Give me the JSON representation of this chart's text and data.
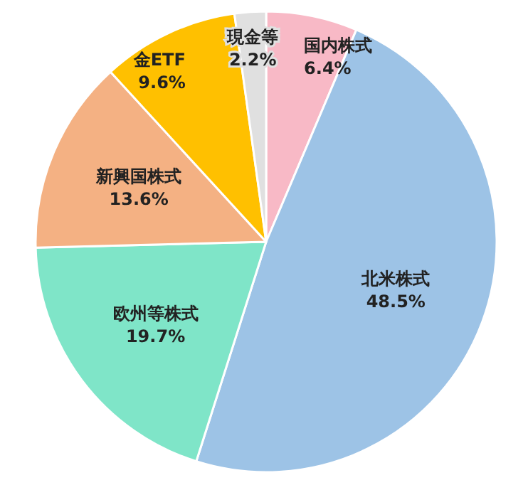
{
  "chart_data": {
    "type": "pie",
    "categories": [
      "国内株式",
      "北米株式",
      "欧州等株式",
      "新興国株式",
      "金ETF",
      "現金等"
    ],
    "values": [
      6.4,
      48.5,
      19.7,
      13.6,
      9.6,
      2.2
    ],
    "value_labels": [
      "6.4%",
      "48.5%",
      "19.7%",
      "13.6%",
      "9.6%",
      "2.2%"
    ],
    "colors": [
      "#f8b9c6",
      "#9dc3e6",
      "#7fe5c8",
      "#f4b183",
      "#ffc000",
      "#e0e0e0"
    ]
  }
}
